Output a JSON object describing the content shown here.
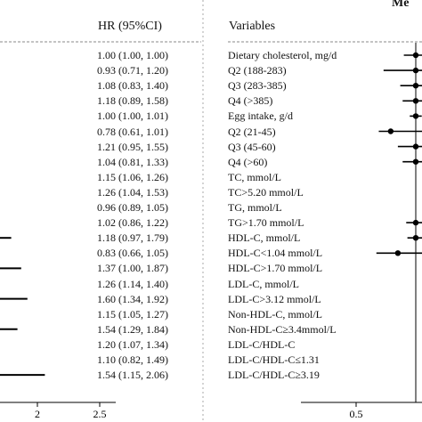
{
  "headers": {
    "hr": "HR (95%CI)",
    "variables": "Variables",
    "right_title_fragment": "Me"
  },
  "rows": [
    {
      "variable": "Dietary cholesterol, mg/d",
      "hr_text": "1.00 (1.00, 1.00)"
    },
    {
      "variable": "Q2 (188-283)",
      "hr_text": "0.93 (0.71, 1.20)"
    },
    {
      "variable": "Q3 (283-385)",
      "hr_text": "1.08 (0.83, 1.40)"
    },
    {
      "variable": "Q4 (>385)",
      "hr_text": "1.18 (0.89, 1.58)"
    },
    {
      "variable": "Egg intake, g/d",
      "hr_text": "1.00 (1.00, 1.01)"
    },
    {
      "variable": "Q2 (21-45)",
      "hr_text": "0.78 (0.61, 1.01)"
    },
    {
      "variable": "Q3 (45-60)",
      "hr_text": "1.21 (0.95, 1.55)"
    },
    {
      "variable": "Q4 (>60)",
      "hr_text": "1.04 (0.81, 1.33)"
    },
    {
      "variable": "TC, mmol/L",
      "hr_text": "1.15 (1.06, 1.26)"
    },
    {
      "variable": "TC>5.20 mmol/L",
      "hr_text": "1.26 (1.04, 1.53)"
    },
    {
      "variable": "TG, mmol/L",
      "hr_text": "0.96 (0.89, 1.05)"
    },
    {
      "variable": "TG>1.70 mmol/L",
      "hr_text": "1.02 (0.86, 1.22)"
    },
    {
      "variable": "HDL-C, mmol/L",
      "hr_text": "1.18 (0.97, 1.79)"
    },
    {
      "variable": "HDL-C<1.04 mmol/L",
      "hr_text": "0.83 (0.66, 1.05)"
    },
    {
      "variable": "HDL-C>1.70 mmol/L",
      "hr_text": "1.37 (1.00, 1.87)"
    },
    {
      "variable": "LDL-C, mmol/L",
      "hr_text": "1.26 (1.14, 1.40)"
    },
    {
      "variable": "LDL-C>3.12 mmol/L",
      "hr_text": "1.60 (1.34, 1.92)"
    },
    {
      "variable": "Non-HDL-C, mmol/L",
      "hr_text": "1.15 (1.05, 1.27)"
    },
    {
      "variable": "Non-HDL-C≥3.4mmol/L",
      "hr_text": "1.54 (1.29, 1.84)"
    },
    {
      "variable": "LDL-C/HDL-C",
      "hr_text": "1.20 (1.07, 1.34)"
    },
    {
      "variable": "LDL-C/HDL-C≤1.31",
      "hr_text": "1.10 (0.82, 1.49)"
    },
    {
      "variable": "LDL-C/HDL-C≥3.19",
      "hr_text": "1.54 (1.15, 2.06)"
    }
  ],
  "chart_data": [
    {
      "type": "forest",
      "panel": "left (cropped)",
      "x_ticks": [
        "2",
        "2.5"
      ],
      "visible_x_range": [
        1.65,
        2.5
      ],
      "reference_line": null,
      "points": [
        {
          "row": 12,
          "hr": 1.18,
          "lower": 0.97,
          "upper": 1.79
        },
        {
          "row": 14,
          "hr": 1.37,
          "lower": 1.0,
          "upper": 1.87
        },
        {
          "row": 16,
          "hr": 1.6,
          "lower": 1.34,
          "upper": 1.92
        },
        {
          "row": 18,
          "hr": 1.54,
          "lower": 1.29,
          "upper": 1.84
        },
        {
          "row": 21,
          "hr": 1.54,
          "lower": 1.15,
          "upper": 2.06
        }
      ]
    },
    {
      "type": "forest",
      "panel": "right (cropped)",
      "x_ticks": [
        "0.5"
      ],
      "visible_x_range": [
        0.3,
        0.97
      ],
      "reference_line": 1.0,
      "points": [
        {
          "row": 0,
          "hr": 1.0,
          "lower": 0.9,
          "upper": 1.1
        },
        {
          "row": 1,
          "hr": 1.0,
          "lower": 0.73,
          "upper": 1.15
        },
        {
          "row": 2,
          "hr": 1.0,
          "lower": 0.87,
          "upper": 1.15
        },
        {
          "row": 3,
          "hr": 1.0,
          "lower": 0.89,
          "upper": 1.15
        },
        {
          "row": 4,
          "hr": 1.0,
          "lower": 0.95,
          "upper": 1.05
        },
        {
          "row": 5,
          "hr": 0.79,
          "lower": 0.69,
          "upper": 1.15
        },
        {
          "row": 6,
          "hr": 1.0,
          "lower": 0.85,
          "upper": 1.15
        },
        {
          "row": 7,
          "hr": 1.0,
          "lower": 0.89,
          "upper": 1.15
        },
        {
          "row": 11,
          "hr": 1.0,
          "lower": 0.92,
          "upper": 1.1
        },
        {
          "row": 12,
          "hr": 1.0,
          "lower": 0.93,
          "upper": 1.1
        },
        {
          "row": 13,
          "hr": 0.85,
          "lower": 0.67,
          "upper": 1.15
        }
      ]
    }
  ]
}
